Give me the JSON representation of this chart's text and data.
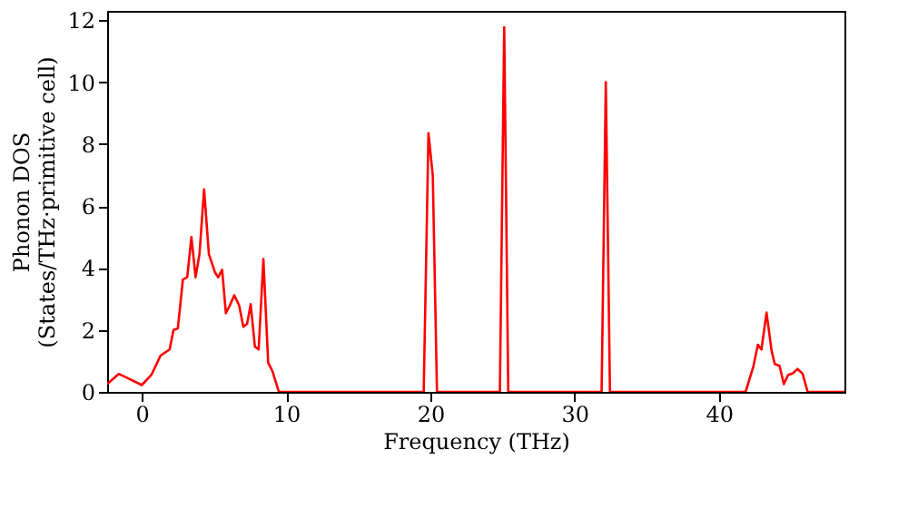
{
  "chart_data": {
    "type": "line",
    "xlabel": "Frequency (THz)",
    "ylabel": "Phonon DOS\n(States/THz·primitive cell)",
    "xlim": [
      -2.4,
      48.7
    ],
    "ylim": [
      0,
      12.3
    ],
    "xticks": [
      0,
      10,
      20,
      30,
      40
    ],
    "yticks": [
      0,
      2,
      4,
      6,
      8,
      10,
      12
    ],
    "grid": false,
    "marker": "none",
    "line_style": "solid",
    "series": [
      {
        "color": "#ff0000",
        "x": [
          -2.4,
          -2.26,
          -1.6,
          -1.0,
          0.0,
          0.67,
          1.3,
          1.93,
          2.2,
          2.5,
          2.85,
          3.15,
          3.44,
          3.73,
          4.0,
          4.32,
          4.65,
          5.07,
          5.3,
          5.57,
          5.83,
          6.1,
          6.41,
          6.75,
          7.04,
          7.3,
          7.55,
          7.84,
          8.1,
          8.43,
          8.76,
          9.05,
          9.5,
          19.54,
          19.87,
          20.17,
          20.46,
          24.82,
          25.12,
          25.4,
          31.87,
          32.16,
          32.45,
          41.85,
          42.4,
          42.7,
          42.95,
          43.3,
          43.65,
          43.87,
          44.2,
          44.5,
          44.8,
          45.1,
          45.45,
          45.8,
          46.15,
          48.7
        ],
        "values": [
          0.25,
          0.31,
          0.58,
          0.45,
          0.22,
          0.55,
          1.17,
          1.37,
          2.0,
          2.05,
          3.63,
          3.7,
          5.0,
          3.7,
          4.45,
          6.54,
          4.45,
          3.86,
          3.7,
          3.94,
          2.54,
          2.79,
          3.12,
          2.79,
          2.1,
          2.2,
          2.83,
          1.46,
          1.37,
          4.29,
          0.94,
          0.68,
          0,
          0,
          8.35,
          6.99,
          0,
          0,
          11.77,
          0,
          0,
          10.0,
          0,
          0,
          0.84,
          1.52,
          1.37,
          2.56,
          1.33,
          0.9,
          0.84,
          0.25,
          0.55,
          0.59,
          0.74,
          0.59,
          0,
          0
        ]
      }
    ]
  }
}
